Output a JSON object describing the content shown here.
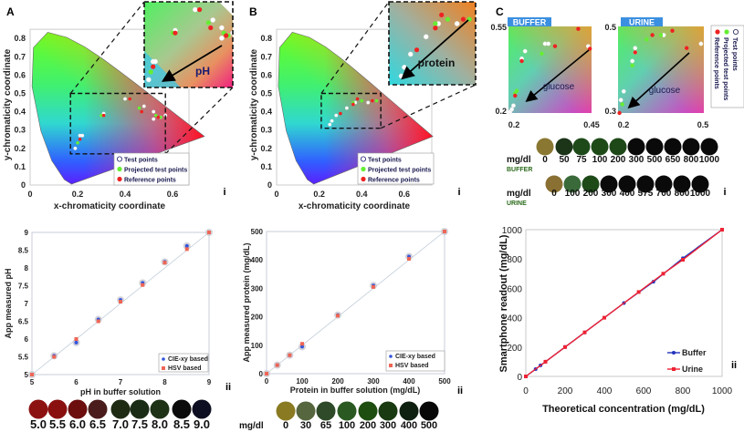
{
  "panels": {
    "A": {
      "label": "A",
      "sub_i": "i",
      "sub_ii": "ii"
    },
    "B": {
      "label": "B",
      "sub_i": "i",
      "sub_ii": "ii"
    },
    "C": {
      "label": "C",
      "sub_i": "i",
      "sub_ii": "ii"
    }
  },
  "legend_points": {
    "test": "Test points",
    "projected": "Projected test points",
    "reference": "Reference points"
  },
  "colors": {
    "test": "#ffffff",
    "projected": "#66ee33",
    "reference": "#ee2222",
    "cie_xy": "#3355dd",
    "hsv": "#ee6655",
    "buffer_line": "#2233bb",
    "urine_line": "#ee2233",
    "tag_bg": "#3b8fe0"
  },
  "chart_data": [
    {
      "id": "A-i",
      "type": "scatter",
      "xlabel": "x-chromaticity coordinate",
      "ylabel": "y-chromaticity coordinate",
      "xlim": [
        0,
        0.75
      ],
      "ylim": [
        0,
        0.85
      ],
      "xticks": [
        "0",
        "0.2",
        "0.4",
        "0.6"
      ],
      "yticks": [
        "0",
        "0.1",
        "0.2",
        "0.3",
        "0.4",
        "0.5",
        "0.6",
        "0.7",
        "0.8"
      ],
      "inset_label": "pH",
      "zoom_region": {
        "x": [
          0.17,
          0.57
        ],
        "y": [
          0.17,
          0.5
        ]
      },
      "series": [
        {
          "name": "Test points",
          "points": [
            [
              0.19,
              0.2
            ],
            [
              0.21,
              0.27
            ],
            [
              0.22,
              0.27
            ],
            [
              0.31,
              0.39
            ],
            [
              0.4,
              0.47
            ],
            [
              0.48,
              0.43
            ],
            [
              0.52,
              0.4
            ],
            [
              0.52,
              0.36
            ],
            [
              0.55,
              0.37
            ],
            [
              0.57,
              0.38
            ]
          ]
        },
        {
          "name": "Projected test points",
          "points": [
            [
              0.2,
              0.23
            ],
            [
              0.3,
              0.38
            ],
            [
              0.46,
              0.42
            ],
            [
              0.53,
              0.38
            ],
            [
              0.55,
              0.37
            ]
          ]
        },
        {
          "name": "Reference points",
          "points": [
            [
              0.21,
              0.25
            ],
            [
              0.31,
              0.38
            ],
            [
              0.42,
              0.47
            ],
            [
              0.47,
              0.4
            ],
            [
              0.54,
              0.37
            ]
          ]
        }
      ]
    },
    {
      "id": "B-i",
      "type": "scatter",
      "xlabel": "x-chromaticity coordinate",
      "ylabel": "y-chromaticity coordinate",
      "xlim": [
        0,
        0.75
      ],
      "ylim": [
        0,
        0.85
      ],
      "xticks": [
        "0",
        "0.2",
        "0.4",
        "0.6"
      ],
      "yticks": [
        "0",
        "0.1",
        "0.2",
        "0.3",
        "0.4",
        "0.5",
        "0.6",
        "0.7",
        "0.8"
      ],
      "inset_label": "protein",
      "zoom_region": {
        "x": [
          0.21,
          0.49
        ],
        "y": [
          0.31,
          0.5
        ]
      },
      "series": [
        {
          "name": "Test points",
          "points": [
            [
              0.25,
              0.33
            ],
            [
              0.26,
              0.35
            ],
            [
              0.28,
              0.38
            ],
            [
              0.33,
              0.42
            ],
            [
              0.37,
              0.45
            ],
            [
              0.43,
              0.45
            ]
          ]
        },
        {
          "name": "Projected test points",
          "points": [
            [
              0.36,
              0.45
            ],
            [
              0.4,
              0.46
            ],
            [
              0.47,
              0.46
            ]
          ]
        },
        {
          "name": "Reference points",
          "points": [
            [
              0.3,
              0.39
            ],
            [
              0.36,
              0.44
            ],
            [
              0.38,
              0.47
            ],
            [
              0.45,
              0.46
            ]
          ]
        }
      ]
    },
    {
      "id": "C-i-buffer",
      "type": "scatter",
      "tag": "BUFFER",
      "inset_label": "glucose",
      "xlim": [
        0.2,
        0.45
      ],
      "ylim": [
        0.2,
        0.55
      ],
      "xticks": [
        "0.2",
        "0.45"
      ],
      "yticks": [
        "0.2",
        "0.55"
      ],
      "series": [
        {
          "name": "Test points",
          "points": [
            [
              0.205,
              0.205
            ],
            [
              0.21,
              0.215
            ],
            [
              0.215,
              0.23
            ],
            [
              0.24,
              0.42
            ],
            [
              0.25,
              0.45
            ],
            [
              0.31,
              0.48
            ],
            [
              0.32,
              0.48
            ],
            [
              0.44,
              0.47
            ]
          ]
        },
        {
          "name": "Projected test points",
          "points": [
            [
              0.22,
              0.28
            ],
            [
              0.225,
              0.29
            ],
            [
              0.3,
              0.44
            ]
          ]
        },
        {
          "name": "Reference points",
          "points": [
            [
              0.22,
              0.27
            ],
            [
              0.24,
              0.41
            ],
            [
              0.34,
              0.47
            ],
            [
              0.41,
              0.54
            ],
            [
              0.445,
              0.46
            ]
          ]
        }
      ]
    },
    {
      "id": "C-i-urine",
      "type": "scatter",
      "tag": "URINE",
      "inset_label": "glucose",
      "xlim": [
        0.2,
        0.5
      ],
      "ylim": [
        0.3,
        0.5
      ],
      "xticks": [
        "0.2",
        "0.5"
      ],
      "yticks": [
        "0.3",
        "0.5"
      ],
      "series": [
        {
          "name": "Test points",
          "points": [
            [
              0.21,
              0.33
            ],
            [
              0.22,
              0.35
            ],
            [
              0.25,
              0.42
            ],
            [
              0.26,
              0.44
            ],
            [
              0.26,
              0.45
            ],
            [
              0.36,
              0.48
            ],
            [
              0.49,
              0.46
            ]
          ]
        },
        {
          "name": "Projected test points",
          "points": [
            [
              0.215,
              0.32
            ],
            [
              0.25,
              0.41
            ],
            [
              0.3,
              0.47
            ],
            [
              0.35,
              0.48
            ]
          ]
        },
        {
          "name": "Reference points",
          "points": [
            [
              0.205,
              0.3
            ],
            [
              0.26,
              0.44
            ],
            [
              0.32,
              0.48
            ],
            [
              0.39,
              0.49
            ],
            [
              0.44,
              0.45
            ]
          ]
        }
      ]
    },
    {
      "id": "A-ii",
      "type": "scatter",
      "xlabel": "pH in buffer solution",
      "ylabel": "App measured pH",
      "xlim": [
        5,
        9
      ],
      "ylim": [
        5,
        9
      ],
      "xticks": [
        "5",
        "6",
        "7",
        "8",
        "9"
      ],
      "yticks": [
        "5",
        "5.5",
        "6",
        "6.5",
        "7",
        "7.5",
        "8",
        "8.5",
        "9"
      ],
      "legend": "bottom-right",
      "x": [
        5,
        5.5,
        6,
        6.5,
        7,
        7.5,
        8,
        8.5,
        9
      ],
      "series": [
        {
          "name": "CIE-xy based",
          "values": [
            5,
            5.53,
            5.9,
            6.55,
            7.1,
            7.58,
            8.17,
            8.62,
            9
          ]
        },
        {
          "name": "HSV based",
          "values": [
            5,
            5.5,
            6.0,
            6.5,
            7.05,
            7.52,
            8.15,
            8.53,
            9
          ]
        }
      ]
    },
    {
      "id": "B-ii",
      "type": "scatter",
      "xlabel": "Protein in buffer solution (mg/dL)",
      "ylabel": "App measured protein (mg/dL)",
      "xlim": [
        0,
        500
      ],
      "ylim": [
        0,
        500
      ],
      "xticks": [
        "0",
        "100",
        "200",
        "300",
        "400",
        "500"
      ],
      "yticks": [
        "0",
        "100",
        "200",
        "300",
        "400",
        "500"
      ],
      "legend": "bottom-right",
      "x": [
        0,
        30,
        65,
        100,
        200,
        300,
        400,
        500
      ],
      "series": [
        {
          "name": "CIE-xy based",
          "values": [
            0,
            30,
            65,
            95,
            206,
            310,
            412,
            500
          ]
        },
        {
          "name": "HSV based",
          "values": [
            0,
            30,
            65,
            105,
            204,
            305,
            404,
            500
          ]
        }
      ]
    },
    {
      "id": "C-ii",
      "type": "line",
      "xlabel": "Theoretical concentration (mg/dL)",
      "ylabel": "Smartphone readout (mg/dL)",
      "xlim": [
        0,
        1000
      ],
      "ylim": [
        0,
        1000
      ],
      "xticks": [
        "0",
        "200",
        "400",
        "600",
        "800",
        "1000"
      ],
      "yticks": [
        "0",
        "200",
        "400",
        "600",
        "800",
        "1000"
      ],
      "legend": "bottom-right",
      "series": [
        {
          "name": "Buffer",
          "x": [
            0,
            50,
            75,
            100,
            200,
            300,
            500,
            650,
            800,
            1000
          ],
          "values": [
            0,
            50,
            75,
            100,
            200,
            300,
            500,
            645,
            805,
            1000
          ]
        },
        {
          "name": "Urine",
          "x": [
            0,
            100,
            200,
            300,
            400,
            575,
            700,
            800,
            1000
          ],
          "values": [
            0,
            100,
            200,
            300,
            400,
            575,
            700,
            795,
            1000
          ]
        }
      ]
    }
  ],
  "swatches": {
    "ph": {
      "labels": [
        "5.0",
        "5.5",
        "6.0",
        "6.5",
        "7.0",
        "7.5",
        "8.0",
        "8.5",
        "9.0"
      ],
      "colors": [
        "#8c1212",
        "#8a1010",
        "#6c0e0e",
        "#4a1c1c",
        "#1e2a12",
        "#1a2c16",
        "#1e3216",
        "#0c0c0c",
        "#0e0e22"
      ]
    },
    "protein": {
      "unit": "mg/dl",
      "labels": [
        "0",
        "30",
        "65",
        "100",
        "200",
        "300",
        "400",
        "500"
      ],
      "colors": [
        "#8a7a22",
        "#56663e",
        "#2e4a28",
        "#2a5a22",
        "#1e4e10",
        "#1a3a12",
        "#102010",
        "#080808"
      ]
    },
    "glucose_buffer": {
      "unit": "mg/dl",
      "medium": "BUFFER",
      "labels": [
        "0",
        "50",
        "75",
        "100",
        "200",
        "300",
        "500",
        "650",
        "800",
        "1000"
      ],
      "colors": [
        "#8a7832",
        "#1c3418",
        "#1e4a1a",
        "#1e4a18",
        "#1e4818",
        "#0a0a0a",
        "#0a0a0a",
        "#0a0a0a",
        "#0a0a0a",
        "#0a0a0a"
      ]
    },
    "glucose_urine": {
      "unit": "mg/dl",
      "medium": "URINE",
      "labels": [
        "0",
        "100",
        "200",
        "300",
        "400",
        "575",
        "700",
        "800",
        "1000"
      ],
      "colors": [
        "#8a7032",
        "#3a6a3a",
        "#1e4a18",
        "#0a0a0a",
        "#0a0a0a",
        "#0a0a0a",
        "#0a0a0a",
        "#0a0a0a",
        "#0a0a0a"
      ]
    }
  }
}
